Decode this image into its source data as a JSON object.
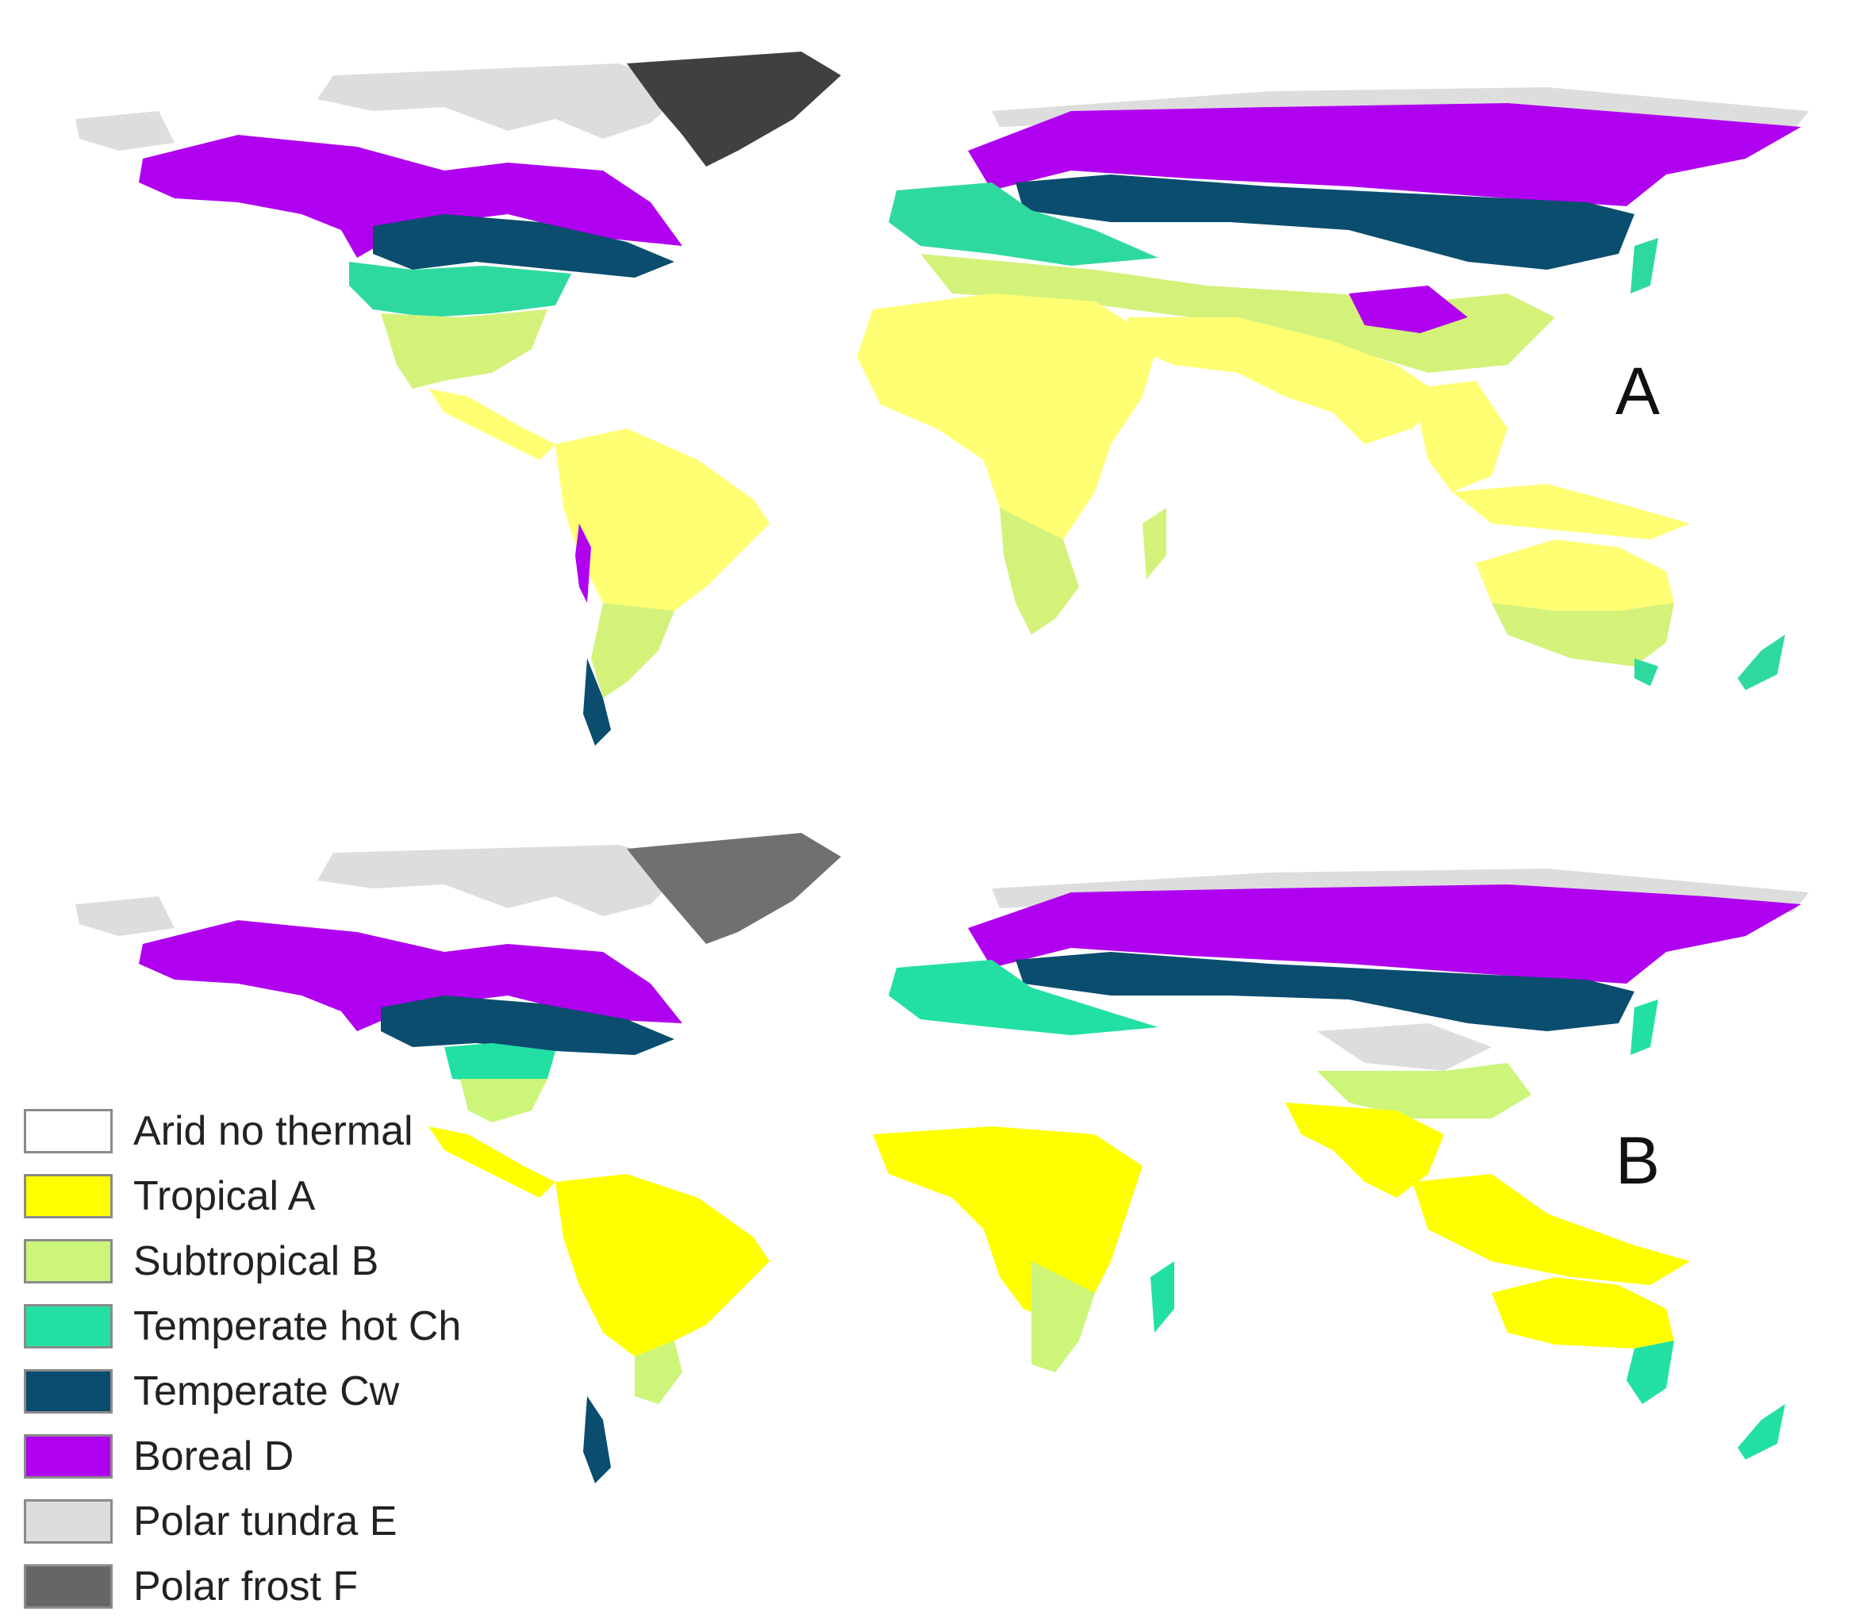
{
  "panels": [
    {
      "label": "A"
    },
    {
      "label": "B"
    }
  ],
  "legend": [
    {
      "label": "Arid no thermal",
      "color": "#ffffff"
    },
    {
      "label": "Tropical A",
      "color": "#ffff00"
    },
    {
      "label": "Subtropical B",
      "color": "#ccf57a"
    },
    {
      "label": "Temperate hot Ch",
      "color": "#22e0a3"
    },
    {
      "label": "Temperate Cw",
      "color": "#0a4d6e"
    },
    {
      "label": "Boreal D",
      "color": "#b000f0"
    },
    {
      "label": "Polar tundra E",
      "color": "#dddddd"
    },
    {
      "label": "Polar frost F",
      "color": "#666666"
    }
  ],
  "map_colors": {
    "panel_a": {
      "tropical": "#ffff73",
      "subtropical": "#d4f27a",
      "temperate_hot": "#2ed9a0",
      "temperate_cw": "#0a4d6e",
      "boreal": "#b000f0",
      "tundra": "#dddddd",
      "frost": "#404040"
    },
    "panel_b": {
      "tropical": "#ffff00",
      "subtropical": "#ccf57a",
      "temperate_hot": "#22e0a3",
      "temperate_cw": "#0a4d6e",
      "boreal": "#b000f0",
      "tundra": "#dddddd",
      "frost": "#707070"
    }
  }
}
